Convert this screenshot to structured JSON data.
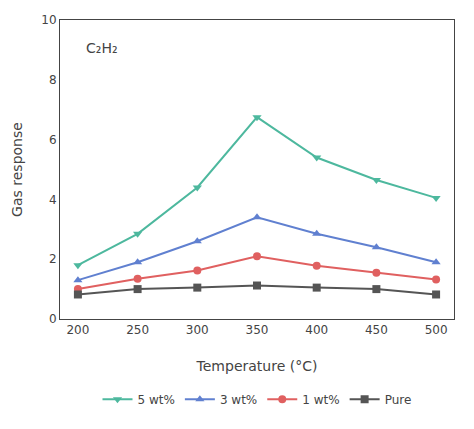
{
  "chart_data": {
    "type": "line",
    "title": "C₂H₂",
    "xlabel": "Temperature (°C)",
    "ylabel": "Gas response",
    "x": [
      200,
      250,
      300,
      350,
      400,
      450,
      500
    ],
    "series": [
      {
        "name": "5 wt%",
        "color": "#4db89e",
        "marker": "triangle-down",
        "line_style": "solid",
        "values": [
          1.8,
          2.85,
          4.4,
          6.75,
          5.4,
          4.65,
          4.05
        ]
      },
      {
        "name": "3 wt%",
        "color": "#6080d0",
        "marker": "triangle-up",
        "line_style": "solid",
        "values": [
          1.3,
          1.9,
          2.6,
          3.4,
          2.85,
          2.4,
          1.9
        ]
      },
      {
        "name": "1 wt%",
        "color": "#e06060",
        "marker": "circle",
        "line_style": "solid",
        "values": [
          1.0,
          1.35,
          1.62,
          2.1,
          1.78,
          1.55,
          1.32
        ]
      },
      {
        "name": "Pure",
        "color": "#555555",
        "marker": "square",
        "line_style": "solid",
        "values": [
          0.82,
          1.0,
          1.05,
          1.12,
          1.05,
          1.0,
          0.82
        ]
      }
    ],
    "xlim": [
      185,
      515
    ],
    "xticks": [
      200,
      250,
      300,
      350,
      400,
      450,
      500
    ],
    "ylim": [
      0,
      10
    ],
    "yticks": [
      0,
      2,
      4,
      6,
      8,
      10
    ],
    "grid": false,
    "legend": "bottom"
  }
}
